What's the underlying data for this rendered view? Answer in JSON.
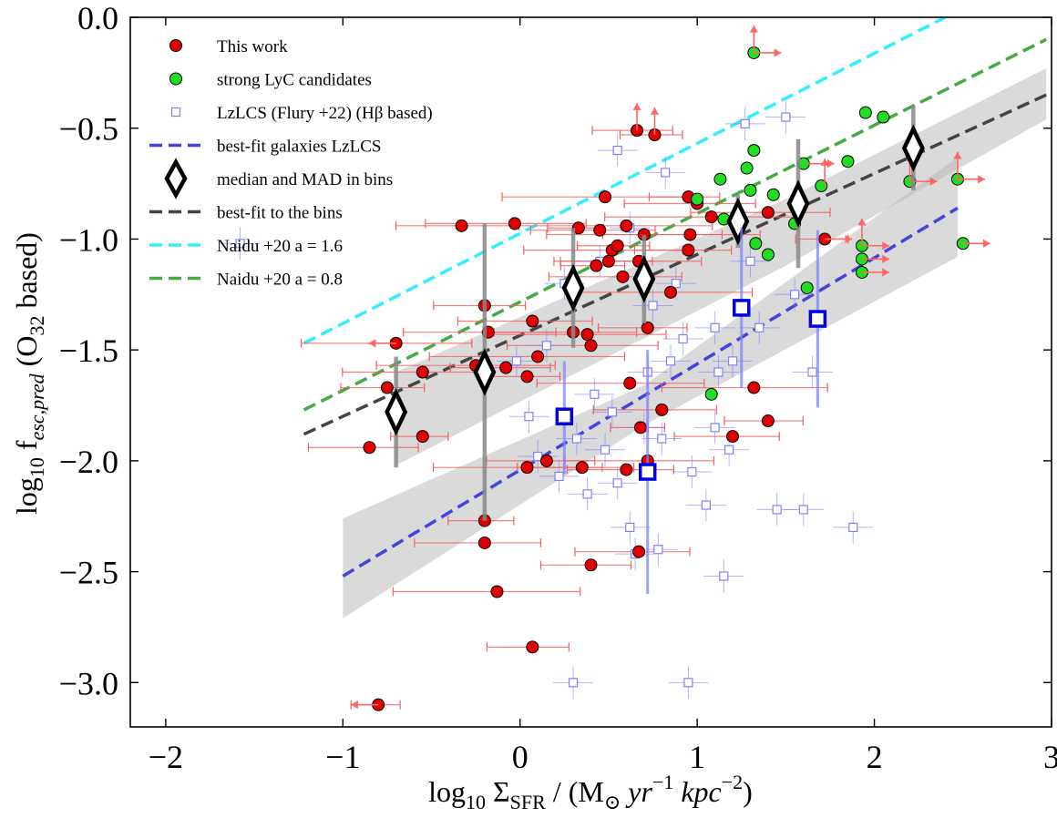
{
  "chart_data": {
    "type": "scatter",
    "title": "",
    "xlabel": {
      "prefix": "log",
      "sub10": "10",
      "sigma": " Σ",
      "sfr": "SFR",
      "units_open": " / (M",
      "sun": "⊙",
      "yr": " yr",
      "yr_exp": "−1",
      "kpc": " kpc",
      "kpc_exp": "−2",
      "units_close": ")"
    },
    "ylabel": {
      "prefix": "log",
      "sub10": "10",
      "f": " f",
      "sub": "esc,pred",
      "o32": " (O",
      "o32_sub": "32",
      "tail": " based)"
    },
    "xlim": [
      -2.2,
      3.0
    ],
    "ylim": [
      -3.2,
      0.0
    ],
    "xticks": [
      -2,
      -1,
      0,
      1,
      2,
      3
    ],
    "xtick_labels": [
      "−2",
      "−1",
      "0",
      "1",
      "2",
      "3"
    ],
    "yticks": [
      0.0,
      -0.5,
      -1.0,
      -1.5,
      -2.0,
      -2.5,
      -3.0
    ],
    "ytick_labels": [
      "0.0",
      "−0.5",
      "−1.0",
      "−1.5",
      "−2.0",
      "−2.5",
      "−3.0"
    ],
    "colors": {
      "this_work": "#e00000",
      "strong_lyc": "#22dd22",
      "lzlcs": "#8080ff",
      "lzlcs_fit": "#4444dd",
      "median": "#000000",
      "bins_fit": "#444444",
      "naidu16": "#33eeff",
      "naidu08": "#44aa44",
      "band": "#bbbbbb",
      "arrow": "#ff6666",
      "errbar": "#f06060",
      "bins_err": "#888888",
      "lzlcs_bins": "#0000dd"
    },
    "legend": [
      {
        "key": "this_work",
        "label": "This work",
        "marker": "circle"
      },
      {
        "key": "strong_lyc",
        "label": "strong LyC candidates",
        "marker": "circle"
      },
      {
        "key": "lzlcs",
        "label": "LzLCS (Flury +22) (Hβ based)",
        "marker": "square"
      },
      {
        "key": "lzlcs_fit",
        "label": "best-fit galaxies LzLCS",
        "marker": "line"
      },
      {
        "key": "median",
        "label": "median and MAD in bins",
        "marker": "diamond"
      },
      {
        "key": "bins_fit",
        "label": "best-fit to the bins",
        "marker": "line"
      },
      {
        "key": "naidu16",
        "label": "Naidu +20 a = 1.6",
        "marker": "line"
      },
      {
        "key": "naidu08",
        "label": "Naidu +20 a = 0.8",
        "marker": "line"
      }
    ],
    "lines": {
      "naidu16": {
        "x": [
          -1.22,
          2.4
        ],
        "y": [
          -1.47,
          0.0
        ]
      },
      "naidu08": {
        "x": [
          -1.22,
          2.97
        ],
        "y": [
          -1.77,
          -0.1
        ]
      },
      "bins_fit": {
        "x": [
          -1.22,
          2.97
        ],
        "y": [
          -1.88,
          -0.35
        ]
      },
      "lzlcs_fit": {
        "x": [
          -1.0,
          2.47
        ],
        "y": [
          -2.52,
          -0.86
        ]
      }
    },
    "bands": {
      "bins_fit": {
        "x": [
          -0.7,
          1.5,
          2.97
        ],
        "upper": [
          -1.6,
          -0.82,
          -0.23
        ],
        "lower": [
          -2.02,
          -1.12,
          -0.46
        ]
      },
      "lzlcs_fit": {
        "x": [
          -1.0,
          0.7,
          2.47
        ],
        "upper": [
          -2.26,
          -1.66,
          -0.63
        ],
        "lower": [
          -2.71,
          -1.84,
          -1.08
        ]
      }
    },
    "median_bins": {
      "x": [
        -0.7,
        -0.2,
        0.3,
        0.7,
        1.23,
        1.57,
        2.22
      ],
      "y": [
        -1.78,
        -1.6,
        -1.22,
        -1.18,
        -0.92,
        -0.84,
        -0.59
      ],
      "err": [
        0.25,
        0.67,
        0.27,
        0.2,
        0.12,
        0.29,
        0.19
      ]
    },
    "lzlcs_bins": {
      "x": [
        0.25,
        0.72,
        1.25,
        1.68
      ],
      "y": [
        -1.8,
        -2.05,
        -1.31,
        -1.36
      ],
      "err_low": [
        0.26,
        0.55,
        0.36,
        0.4
      ],
      "err_high": [
        0.25,
        0.55,
        0.36,
        0.4
      ]
    },
    "this_work": [
      [
        -0.8,
        -3.1
      ],
      [
        -0.85,
        -1.94
      ],
      [
        -0.7,
        -1.47
      ],
      [
        -0.75,
        -1.67
      ],
      [
        -0.55,
        -1.6
      ],
      [
        -0.55,
        -1.89
      ],
      [
        -0.33,
        -0.94
      ],
      [
        -0.25,
        -1.57
      ],
      [
        -0.2,
        -1.3
      ],
      [
        -0.18,
        -1.42
      ],
      [
        -0.2,
        -2.27
      ],
      [
        -0.2,
        -2.37
      ],
      [
        -0.13,
        -2.59
      ],
      [
        -0.08,
        -1.58
      ],
      [
        -0.03,
        -0.93
      ],
      [
        0.04,
        -1.62
      ],
      [
        0.07,
        -1.37
      ],
      [
        0.1,
        -1.53
      ],
      [
        0.15,
        -2.0
      ],
      [
        0.04,
        -2.03
      ],
      [
        0.07,
        -2.84
      ],
      [
        0.3,
        -1.42
      ],
      [
        0.33,
        -0.95
      ],
      [
        0.35,
        -2.03
      ],
      [
        0.38,
        -1.43
      ],
      [
        0.4,
        -2.47
      ],
      [
        0.4,
        -1.48
      ],
      [
        0.43,
        -1.12
      ],
      [
        0.45,
        -0.96
      ],
      [
        0.48,
        -0.81
      ],
      [
        0.5,
        -1.1
      ],
      [
        0.52,
        -1.05
      ],
      [
        0.55,
        -1.03
      ],
      [
        0.58,
        -1.17
      ],
      [
        0.6,
        -0.94
      ],
      [
        0.6,
        -2.04
      ],
      [
        0.62,
        -1.65
      ],
      [
        0.66,
        -0.51
      ],
      [
        0.67,
        -1.1
      ],
      [
        0.68,
        -1.85
      ],
      [
        0.67,
        -2.41
      ],
      [
        0.7,
        -0.98
      ],
      [
        0.72,
        -1.4
      ],
      [
        0.72,
        -2.0
      ],
      [
        0.76,
        -0.53
      ],
      [
        0.8,
        -1.77
      ],
      [
        0.85,
        -1.24
      ],
      [
        0.95,
        -1.05
      ],
      [
        0.96,
        -0.98
      ],
      [
        0.95,
        -0.81
      ],
      [
        1.0,
        -0.84
      ],
      [
        1.08,
        -0.9
      ],
      [
        1.2,
        -1.89
      ],
      [
        1.32,
        -1.67
      ],
      [
        1.4,
        -1.82
      ],
      [
        1.4,
        -0.88
      ],
      [
        1.72,
        -1.0
      ]
    ],
    "strong_lyc": [
      [
        1.32,
        -0.16
      ],
      [
        1.13,
        -0.73
      ],
      [
        1.0,
        -0.82
      ],
      [
        1.28,
        -0.68
      ],
      [
        1.32,
        -0.6
      ],
      [
        1.3,
        -0.78
      ],
      [
        1.15,
        -0.91
      ],
      [
        1.33,
        -1.02
      ],
      [
        1.4,
        -1.07
      ],
      [
        1.55,
        -0.93
      ],
      [
        1.6,
        -0.66
      ],
      [
        1.7,
        -0.76
      ],
      [
        1.43,
        -0.8
      ],
      [
        1.95,
        -0.43
      ],
      [
        2.05,
        -0.45
      ],
      [
        1.85,
        -0.65
      ],
      [
        1.93,
        -1.03
      ],
      [
        1.93,
        -1.09
      ],
      [
        1.93,
        -1.15
      ],
      [
        2.2,
        -0.74
      ],
      [
        2.47,
        -0.73
      ],
      [
        2.5,
        -1.02
      ],
      [
        1.62,
        -1.22
      ],
      [
        1.08,
        -1.7
      ]
    ],
    "lzlcs": [
      [
        -1.58,
        -1.02
      ],
      [
        -0.02,
        -1.55
      ],
      [
        0.05,
        -1.8
      ],
      [
        0.1,
        -1.98
      ],
      [
        0.15,
        -1.48
      ],
      [
        0.22,
        -2.07
      ],
      [
        0.3,
        -3.0
      ],
      [
        0.32,
        -1.9
      ],
      [
        0.38,
        -2.15
      ],
      [
        0.42,
        -1.7
      ],
      [
        0.48,
        -1.95
      ],
      [
        0.52,
        -1.78
      ],
      [
        0.55,
        -2.1
      ],
      [
        0.62,
        -2.3
      ],
      [
        0.65,
        -2.42
      ],
      [
        0.7,
        -1.85
      ],
      [
        0.72,
        -1.6
      ],
      [
        0.75,
        -1.3
      ],
      [
        0.78,
        -2.4
      ],
      [
        0.8,
        -1.9
      ],
      [
        0.85,
        -1.55
      ],
      [
        0.88,
        -1.2
      ],
      [
        0.92,
        -1.45
      ],
      [
        0.97,
        -2.05
      ],
      [
        1.05,
        -2.2
      ],
      [
        1.1,
        -1.85
      ],
      [
        1.12,
        -1.6
      ],
      [
        1.18,
        -1.95
      ],
      [
        1.2,
        -1.55
      ],
      [
        1.27,
        -0.48
      ],
      [
        1.3,
        -1.1
      ],
      [
        1.35,
        -1.4
      ],
      [
        1.45,
        -2.22
      ],
      [
        1.55,
        -1.25
      ],
      [
        1.6,
        -2.22
      ],
      [
        1.65,
        -1.6
      ],
      [
        1.5,
        -0.45
      ],
      [
        1.15,
        -2.52
      ],
      [
        0.95,
        -3.0
      ],
      [
        0.62,
        -0.95
      ],
      [
        0.55,
        -0.6
      ],
      [
        0.45,
        -1.1
      ],
      [
        1.88,
        -2.3
      ],
      [
        1.1,
        -1.4
      ],
      [
        0.25,
        -1.2
      ],
      [
        0.82,
        -0.7
      ]
    ],
    "upper_arrows": [
      [
        -0.8,
        -3.1
      ],
      [
        -0.7,
        -1.47
      ]
    ],
    "right_arrows": [
      [
        1.32,
        -0.16
      ],
      [
        1.72,
        -1.0
      ],
      [
        1.93,
        -1.03
      ],
      [
        1.93,
        -1.09
      ],
      [
        1.93,
        -1.15
      ],
      [
        2.2,
        -0.74
      ],
      [
        2.47,
        -0.73
      ],
      [
        2.5,
        -1.02
      ],
      [
        1.62,
        -0.66
      ]
    ],
    "up_arrows": [
      [
        1.32,
        -0.16
      ],
      [
        0.66,
        -0.51
      ],
      [
        0.76,
        -0.53
      ],
      [
        1.72,
        -0.76
      ],
      [
        1.93,
        -1.03
      ],
      [
        2.2,
        -0.74
      ],
      [
        2.47,
        -0.73
      ]
    ]
  }
}
